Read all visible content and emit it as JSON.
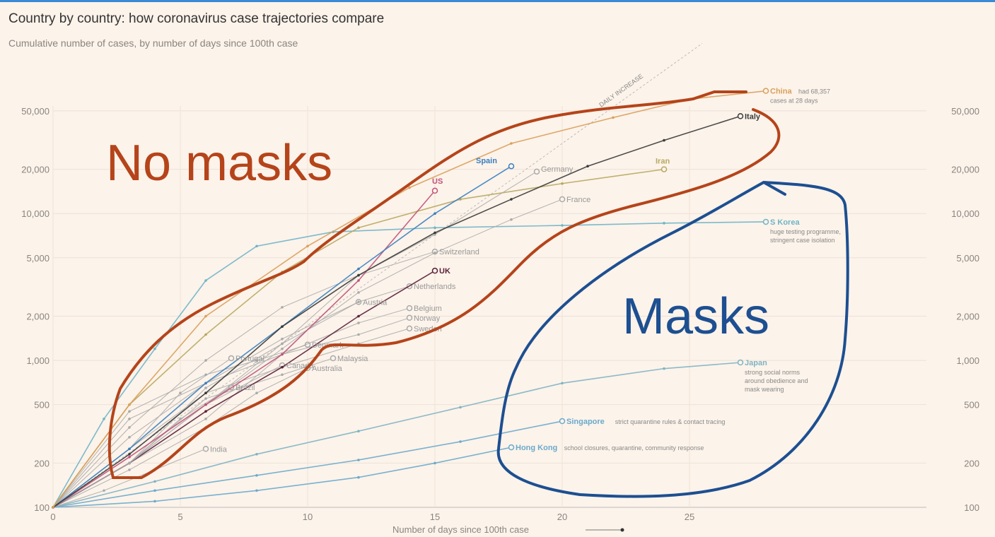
{
  "chart_data": {
    "type": "line",
    "title": "Country by country: how coronavirus case trajectories compare",
    "subtitle": "Cumulative number of cases, by number of days since 100th case",
    "xlabel": "Number of days since 100th case",
    "ylabel": "",
    "xlim": [
      0,
      32
    ],
    "ylim": [
      100,
      80000
    ],
    "yscale": "log",
    "grid": true,
    "x_ticks": [
      "0",
      "5",
      "10",
      "15",
      "20",
      "25"
    ],
    "y_ticks": [
      "100",
      "200",
      "500",
      "1,000",
      "2,000",
      "5,000",
      "10,000",
      "20,000",
      "50,000"
    ],
    "reference_line": {
      "label": "DAILY INCREASE",
      "daily_growth_pct": 33
    },
    "series": [
      {
        "name": "China",
        "color": "#d9a05a",
        "points": [
          [
            0,
            100
          ],
          [
            3,
            500
          ],
          [
            6,
            2000
          ],
          [
            10,
            6000
          ],
          [
            14,
            15000
          ],
          [
            18,
            30000
          ],
          [
            22,
            45000
          ],
          [
            25,
            60000
          ],
          [
            28,
            68357
          ]
        ],
        "note": [
          "had 68,357",
          "cases at 28 days"
        ]
      },
      {
        "name": "Italy",
        "color": "#3a3a3a",
        "points": [
          [
            0,
            100
          ],
          [
            3,
            230
          ],
          [
            6,
            600
          ],
          [
            9,
            1700
          ],
          [
            12,
            3800
          ],
          [
            15,
            7400
          ],
          [
            18,
            12500
          ],
          [
            21,
            21000
          ],
          [
            24,
            31500
          ],
          [
            27,
            46000
          ]
        ]
      },
      {
        "name": "Spain",
        "color": "#3a7fc0",
        "points": [
          [
            0,
            100
          ],
          [
            3,
            250
          ],
          [
            6,
            700
          ],
          [
            9,
            1700
          ],
          [
            12,
            4200
          ],
          [
            15,
            10000
          ],
          [
            18,
            21000
          ]
        ]
      },
      {
        "name": "US",
        "color": "#c0527a",
        "points": [
          [
            0,
            100
          ],
          [
            3,
            220
          ],
          [
            6,
            500
          ],
          [
            9,
            1100
          ],
          [
            12,
            3500
          ],
          [
            15,
            14300
          ]
        ]
      },
      {
        "name": "Germany",
        "color": "#aaaaaa",
        "points": [
          [
            0,
            100
          ],
          [
            3,
            200
          ],
          [
            6,
            500
          ],
          [
            9,
            1300
          ],
          [
            12,
            3800
          ],
          [
            15,
            7200
          ],
          [
            19,
            19300
          ]
        ]
      },
      {
        "name": "Iran",
        "color": "#b8a860",
        "points": [
          [
            0,
            100
          ],
          [
            3,
            500
          ],
          [
            6,
            1500
          ],
          [
            9,
            4000
          ],
          [
            12,
            8000
          ],
          [
            16,
            12500
          ],
          [
            20,
            16000
          ],
          [
            24,
            20000
          ]
        ]
      },
      {
        "name": "France",
        "color": "#aaaaaa",
        "points": [
          [
            0,
            100
          ],
          [
            3,
            200
          ],
          [
            6,
            500
          ],
          [
            9,
            1200
          ],
          [
            12,
            2900
          ],
          [
            15,
            5400
          ],
          [
            18,
            9100
          ],
          [
            20,
            12500
          ]
        ]
      },
      {
        "name": "S Korea",
        "color": "#6fb4c8",
        "points": [
          [
            0,
            100
          ],
          [
            2,
            400
          ],
          [
            4,
            1200
          ],
          [
            6,
            3500
          ],
          [
            8,
            6000
          ],
          [
            11,
            7500
          ],
          [
            15,
            8000
          ],
          [
            20,
            8300
          ],
          [
            24,
            8600
          ],
          [
            28,
            8780
          ]
        ],
        "note": [
          "huge testing programme,",
          "stringent case isolation"
        ]
      },
      {
        "name": "Switzerland",
        "color": "#aaaaaa",
        "points": [
          [
            0,
            100
          ],
          [
            3,
            350
          ],
          [
            6,
            1000
          ],
          [
            9,
            2300
          ],
          [
            12,
            3800
          ],
          [
            15,
            5500
          ]
        ]
      },
      {
        "name": "UK",
        "color": "#5a1f3a",
        "points": [
          [
            0,
            100
          ],
          [
            3,
            200
          ],
          [
            6,
            450
          ],
          [
            9,
            900
          ],
          [
            12,
            2000
          ],
          [
            15,
            4080
          ]
        ]
      },
      {
        "name": "Netherlands",
        "color": "#aaaaaa",
        "points": [
          [
            0,
            100
          ],
          [
            3,
            300
          ],
          [
            6,
            700
          ],
          [
            9,
            1400
          ],
          [
            12,
            2500
          ],
          [
            14,
            3200
          ]
        ]
      },
      {
        "name": "Austria",
        "color": "#aaaaaa",
        "points": [
          [
            0,
            100
          ],
          [
            3,
            200
          ],
          [
            6,
            650
          ],
          [
            9,
            1300
          ],
          [
            12,
            2500
          ]
        ]
      },
      {
        "name": "Belgium",
        "color": "#aaaaaa",
        "points": [
          [
            0,
            100
          ],
          [
            3,
            200
          ],
          [
            6,
            400
          ],
          [
            9,
            1100
          ],
          [
            12,
            1800
          ],
          [
            14,
            2270
          ]
        ]
      },
      {
        "name": "Norway",
        "color": "#aaaaaa",
        "points": [
          [
            0,
            100
          ],
          [
            3,
            400
          ],
          [
            6,
            700
          ],
          [
            9,
            1100
          ],
          [
            12,
            1500
          ],
          [
            14,
            1950
          ]
        ]
      },
      {
        "name": "Sweden",
        "color": "#aaaaaa",
        "points": [
          [
            0,
            100
          ],
          [
            3,
            250
          ],
          [
            6,
            600
          ],
          [
            9,
            900
          ],
          [
            12,
            1300
          ],
          [
            14,
            1650
          ]
        ]
      },
      {
        "name": "Denmark",
        "color": "#aaaaaa",
        "points": [
          [
            0,
            100
          ],
          [
            3,
            450
          ],
          [
            6,
            800
          ],
          [
            8,
            1000
          ],
          [
            10,
            1280
          ]
        ]
      },
      {
        "name": "Malaysia",
        "color": "#aaaaaa",
        "points": [
          [
            0,
            100
          ],
          [
            3,
            200
          ],
          [
            6,
            550
          ],
          [
            9,
            800
          ],
          [
            11,
            1035
          ]
        ]
      },
      {
        "name": "Australia",
        "color": "#aaaaaa",
        "points": [
          [
            0,
            100
          ],
          [
            3,
            180
          ],
          [
            6,
            350
          ],
          [
            8,
            600
          ],
          [
            10,
            887
          ]
        ]
      },
      {
        "name": "Portugal",
        "color": "#aaaaaa",
        "points": [
          [
            0,
            100
          ],
          [
            3,
            250
          ],
          [
            5,
            600
          ],
          [
            7,
            1035
          ]
        ]
      },
      {
        "name": "Canada",
        "color": "#aaaaaa",
        "points": [
          [
            0,
            100
          ],
          [
            3,
            200
          ],
          [
            6,
            500
          ],
          [
            9,
            927
          ]
        ]
      },
      {
        "name": "Brazil",
        "color": "#aaaaaa",
        "points": [
          [
            0,
            100
          ],
          [
            3,
            200
          ],
          [
            5,
            400
          ],
          [
            7,
            657
          ]
        ]
      },
      {
        "name": "India",
        "color": "#aaaaaa",
        "points": [
          [
            0,
            100
          ],
          [
            2,
            130
          ],
          [
            4,
            180
          ],
          [
            6,
            250
          ]
        ]
      },
      {
        "name": "Japan",
        "color": "#7fb4c4",
        "points": [
          [
            0,
            100
          ],
          [
            4,
            150
          ],
          [
            8,
            230
          ],
          [
            12,
            330
          ],
          [
            16,
            480
          ],
          [
            20,
            700
          ],
          [
            24,
            880
          ],
          [
            27,
            968
          ]
        ],
        "note": [
          "strong social norms",
          "around obedience and",
          "mask wearing"
        ]
      },
      {
        "name": "Singapore",
        "color": "#6aaacc",
        "points": [
          [
            0,
            100
          ],
          [
            4,
            130
          ],
          [
            8,
            165
          ],
          [
            12,
            210
          ],
          [
            16,
            280
          ],
          [
            20,
            386
          ]
        ],
        "note": [
          "strict quarantine rules & contact tracing"
        ]
      },
      {
        "name": "Hong Kong",
        "color": "#6aaacc",
        "points": [
          [
            0,
            100
          ],
          [
            4,
            110
          ],
          [
            8,
            130
          ],
          [
            12,
            160
          ],
          [
            15,
            200
          ],
          [
            18,
            256
          ]
        ],
        "note": [
          "school closures, quarantine, community response"
        ]
      }
    ]
  },
  "annotations": {
    "no_masks": {
      "text": "No masks",
      "color": "#b5441a"
    },
    "masks": {
      "text": "Masks",
      "color": "#1d4f91"
    }
  }
}
